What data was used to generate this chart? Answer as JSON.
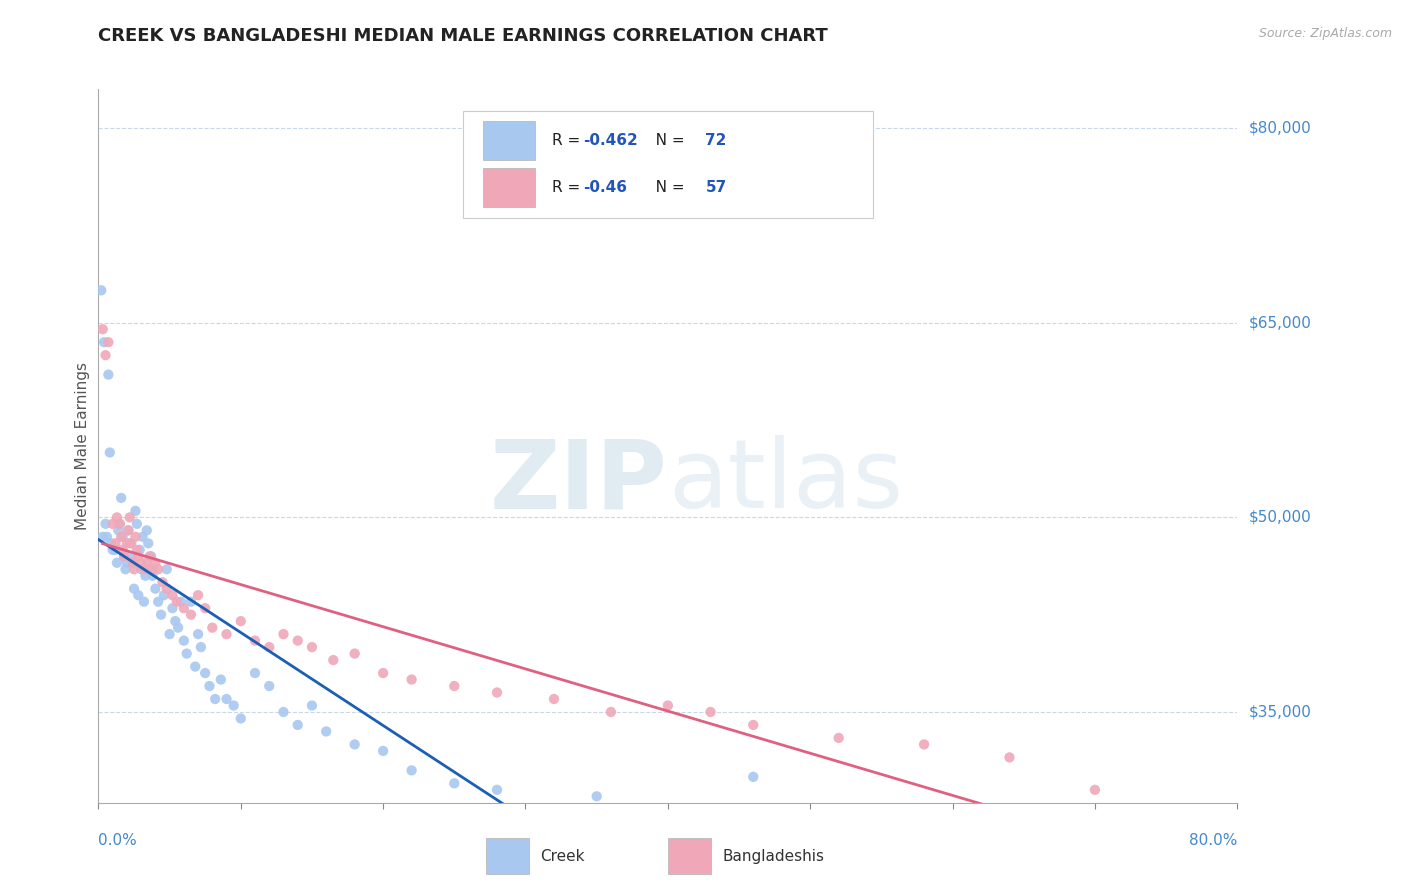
{
  "title": "CREEK VS BANGLADESHI MEDIAN MALE EARNINGS CORRELATION CHART",
  "source_text": "Source: ZipAtlas.com",
  "ylabel": "Median Male Earnings",
  "yticks": [
    35000,
    50000,
    65000,
    80000
  ],
  "ytick_labels": [
    "$35,000",
    "$50,000",
    "$65,000",
    "$80,000"
  ],
  "xmin": 0.0,
  "xmax": 0.8,
  "ymin": 28000,
  "ymax": 83000,
  "creek_color": "#a8c8f0",
  "bangladeshi_color": "#f0a8b8",
  "creek_line_color": "#1a5fb4",
  "bangladeshi_line_color": "#e06080",
  "creek_R": -0.462,
  "creek_N": 72,
  "bangladeshi_R": -0.46,
  "bangladeshi_N": 57,
  "legend_label_creek": "Creek",
  "legend_label_bangladeshi": "Bangladeshis",
  "background_color": "#ffffff",
  "grid_color": "#c8d8e8",
  "axis_label_color": "#4488cc",
  "creek_scatter_x": [
    0.002,
    0.003,
    0.004,
    0.005,
    0.006,
    0.007,
    0.008,
    0.009,
    0.01,
    0.012,
    0.013,
    0.014,
    0.015,
    0.016,
    0.017,
    0.018,
    0.019,
    0.02,
    0.021,
    0.022,
    0.023,
    0.024,
    0.025,
    0.026,
    0.027,
    0.028,
    0.029,
    0.03,
    0.031,
    0.032,
    0.033,
    0.034,
    0.035,
    0.036,
    0.037,
    0.038,
    0.04,
    0.042,
    0.044,
    0.046,
    0.048,
    0.05,
    0.052,
    0.054,
    0.056,
    0.058,
    0.06,
    0.062,
    0.065,
    0.068,
    0.07,
    0.072,
    0.075,
    0.078,
    0.082,
    0.086,
    0.09,
    0.095,
    0.1,
    0.11,
    0.12,
    0.13,
    0.14,
    0.15,
    0.16,
    0.18,
    0.2,
    0.22,
    0.25,
    0.28,
    0.35,
    0.46
  ],
  "creek_scatter_y": [
    67500,
    48500,
    63500,
    49500,
    48500,
    61000,
    55000,
    48000,
    47500,
    47500,
    46500,
    49000,
    49500,
    51500,
    48500,
    47000,
    46000,
    46500,
    49000,
    48000,
    47000,
    46500,
    44500,
    50500,
    49500,
    44000,
    47500,
    46000,
    48500,
    43500,
    45500,
    49000,
    48000,
    46000,
    47000,
    45500,
    44500,
    43500,
    42500,
    44000,
    46000,
    41000,
    43000,
    42000,
    41500,
    43500,
    40500,
    39500,
    43500,
    38500,
    41000,
    40000,
    38000,
    37000,
    36000,
    37500,
    36000,
    35500,
    34500,
    38000,
    37000,
    35000,
    34000,
    35500,
    33500,
    32500,
    32000,
    30500,
    29500,
    29000,
    28500,
    30000
  ],
  "bangladeshi_scatter_x": [
    0.003,
    0.005,
    0.007,
    0.01,
    0.012,
    0.013,
    0.015,
    0.016,
    0.017,
    0.018,
    0.02,
    0.021,
    0.022,
    0.023,
    0.024,
    0.025,
    0.026,
    0.027,
    0.028,
    0.03,
    0.032,
    0.034,
    0.036,
    0.038,
    0.04,
    0.042,
    0.045,
    0.048,
    0.052,
    0.055,
    0.06,
    0.065,
    0.07,
    0.075,
    0.08,
    0.09,
    0.1,
    0.11,
    0.12,
    0.13,
    0.14,
    0.15,
    0.165,
    0.18,
    0.2,
    0.22,
    0.25,
    0.28,
    0.32,
    0.36,
    0.4,
    0.43,
    0.46,
    0.52,
    0.58,
    0.64,
    0.7
  ],
  "bangladeshi_scatter_y": [
    64500,
    62500,
    63500,
    49500,
    48000,
    50000,
    49500,
    48500,
    47500,
    47000,
    48000,
    49000,
    50000,
    48000,
    46500,
    46000,
    48500,
    47500,
    47000,
    46500,
    46000,
    46500,
    47000,
    46000,
    46500,
    46000,
    45000,
    44500,
    44000,
    43500,
    43000,
    42500,
    44000,
    43000,
    41500,
    41000,
    42000,
    40500,
    40000,
    41000,
    40500,
    40000,
    39000,
    39500,
    38000,
    37500,
    37000,
    36500,
    36000,
    35000,
    35500,
    35000,
    34000,
    33000,
    32500,
    31500,
    29000
  ]
}
